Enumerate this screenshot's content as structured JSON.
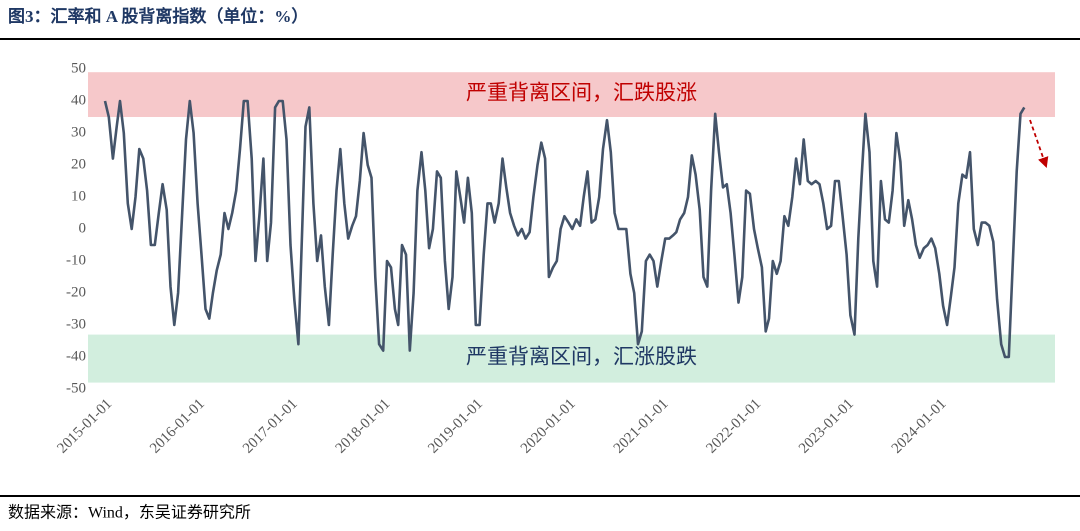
{
  "chart_data": {
    "type": "line",
    "title": "图3：汇率和 A 股背离指数（单位：%）",
    "source": "数据来源：Wind，东吴证券研究所",
    "x": [
      "2015-01-01",
      "2015-01-16",
      "2015-02-01",
      "2015-02-16",
      "2015-03-01",
      "2015-03-16",
      "2015-04-01",
      "2015-04-16",
      "2015-05-01",
      "2015-05-16",
      "2015-06-01",
      "2015-06-16",
      "2015-07-01",
      "2015-07-16",
      "2015-08-01",
      "2015-08-16",
      "2015-09-01",
      "2015-09-16",
      "2015-10-01",
      "2015-10-16",
      "2015-11-01",
      "2015-11-16",
      "2015-12-01",
      "2015-12-16",
      "2016-01-01",
      "2016-01-16",
      "2016-02-01",
      "2016-02-16",
      "2016-03-01",
      "2016-03-16",
      "2016-04-01",
      "2016-04-16",
      "2016-05-01",
      "2016-05-16",
      "2016-06-01",
      "2016-06-16",
      "2016-07-01",
      "2016-07-16",
      "2016-08-01",
      "2016-08-16",
      "2016-09-01",
      "2016-09-16",
      "2016-10-01",
      "2016-10-16",
      "2016-11-01",
      "2016-11-16",
      "2016-12-01",
      "2016-12-16",
      "2017-01-01",
      "2017-01-16",
      "2017-02-01",
      "2017-02-16",
      "2017-03-01",
      "2017-03-16",
      "2017-04-01",
      "2017-04-16",
      "2017-05-01",
      "2017-05-16",
      "2017-06-01",
      "2017-06-16",
      "2017-07-01",
      "2017-07-16",
      "2017-08-01",
      "2017-08-16",
      "2017-09-01",
      "2017-09-16",
      "2017-10-01",
      "2017-10-16",
      "2017-11-01",
      "2017-11-16",
      "2017-12-01",
      "2017-12-16",
      "2018-01-01",
      "2018-01-16",
      "2018-02-01",
      "2018-02-16",
      "2018-03-01",
      "2018-03-16",
      "2018-04-01",
      "2018-04-16",
      "2018-05-01",
      "2018-05-16",
      "2018-06-01",
      "2018-06-16",
      "2018-07-01",
      "2018-07-16",
      "2018-08-01",
      "2018-08-16",
      "2018-09-01",
      "2018-09-16",
      "2018-10-01",
      "2018-10-16",
      "2018-11-01",
      "2018-11-16",
      "2018-12-01",
      "2018-12-16",
      "2019-01-01",
      "2019-01-16",
      "2019-02-01",
      "2019-02-16",
      "2019-03-01",
      "2019-03-16",
      "2019-04-01",
      "2019-04-16",
      "2019-05-01",
      "2019-05-16",
      "2019-06-01",
      "2019-06-16",
      "2019-07-01",
      "2019-07-16",
      "2019-08-01",
      "2019-08-16",
      "2019-09-01",
      "2019-09-16",
      "2019-10-01",
      "2019-10-16",
      "2019-11-01",
      "2019-11-16",
      "2019-12-01",
      "2019-12-16",
      "2020-01-01",
      "2020-01-16",
      "2020-02-01",
      "2020-02-16",
      "2020-03-01",
      "2020-03-16",
      "2020-04-01",
      "2020-04-16",
      "2020-05-01",
      "2020-05-16",
      "2020-06-01",
      "2020-06-16",
      "2020-07-01",
      "2020-07-16",
      "2020-08-01",
      "2020-08-16",
      "2020-09-01",
      "2020-09-16",
      "2020-10-01",
      "2020-10-16",
      "2020-11-01",
      "2020-11-16",
      "2020-12-01",
      "2020-12-16",
      "2021-01-01",
      "2021-01-16",
      "2021-02-01",
      "2021-02-16",
      "2021-03-01",
      "2021-03-16",
      "2021-04-01",
      "2021-04-16",
      "2021-05-01",
      "2021-05-16",
      "2021-06-01",
      "2021-06-16",
      "2021-07-01",
      "2021-07-16",
      "2021-08-01",
      "2021-08-16",
      "2021-09-01",
      "2021-09-16",
      "2021-10-01",
      "2021-10-16",
      "2021-11-01",
      "2021-11-16",
      "2021-12-01",
      "2021-12-16",
      "2022-01-01",
      "2022-01-16",
      "2022-02-01",
      "2022-02-16",
      "2022-03-01",
      "2022-03-16",
      "2022-04-01",
      "2022-04-16",
      "2022-05-01",
      "2022-05-16",
      "2022-06-01",
      "2022-06-16",
      "2022-07-01",
      "2022-07-16",
      "2022-08-01",
      "2022-08-16",
      "2022-09-01",
      "2022-09-16",
      "2022-10-01",
      "2022-10-16",
      "2022-11-01",
      "2022-11-16",
      "2022-12-01",
      "2022-12-16",
      "2023-01-01",
      "2023-01-16",
      "2023-02-01",
      "2023-02-16",
      "2023-03-01",
      "2023-03-16",
      "2023-04-01",
      "2023-04-16",
      "2023-05-01",
      "2023-05-16",
      "2023-06-01",
      "2023-06-16",
      "2023-07-01",
      "2023-07-16",
      "2023-08-01",
      "2023-08-16",
      "2023-09-01",
      "2023-09-16",
      "2023-10-01",
      "2023-10-16",
      "2023-11-01",
      "2023-11-16",
      "2023-12-01",
      "2023-12-16",
      "2024-01-01",
      "2024-01-16",
      "2024-02-01",
      "2024-02-16",
      "2024-03-01",
      "2024-03-16",
      "2024-04-01",
      "2024-04-16",
      "2024-05-01",
      "2024-05-16",
      "2024-06-01",
      "2024-06-16",
      "2024-07-01",
      "2024-07-16",
      "2024-08-01",
      "2024-08-16",
      "2024-09-01",
      "2024-09-16",
      "2024-10-01",
      "2024-10-16",
      "2024-11-01",
      "2024-11-16",
      "2024-12-01"
    ],
    "series": [
      {
        "color": "#44546a",
        "values": [
          40,
          35,
          22,
          32,
          40,
          30,
          8,
          0,
          10,
          25,
          22,
          12,
          -5,
          -5,
          5,
          14,
          6,
          -18,
          -30,
          -20,
          5,
          28,
          40,
          30,
          8,
          -8,
          -25,
          -28,
          -20,
          -13,
          -8,
          5,
          0,
          5,
          12,
          25,
          40,
          40,
          22,
          -10,
          5,
          22,
          -10,
          2,
          38,
          40,
          40,
          28,
          -5,
          -22,
          -36,
          0,
          32,
          38,
          8,
          -10,
          -2,
          -18,
          -30,
          -8,
          12,
          25,
          8,
          -3,
          1,
          4,
          15,
          30,
          20,
          16,
          -15,
          -36,
          -38,
          -10,
          -12,
          -25,
          -30,
          -5,
          -8,
          -38,
          -20,
          12,
          24,
          12,
          -6,
          0,
          18,
          16,
          -10,
          -25,
          -15,
          18,
          10,
          2,
          16,
          5,
          -30,
          -30,
          -8,
          8,
          8,
          2,
          8,
          22,
          13,
          5,
          1,
          -2,
          0,
          -3,
          -1,
          10,
          20,
          27,
          22,
          -15,
          -12,
          -10,
          0,
          4,
          2,
          0,
          3,
          1,
          10,
          18,
          2,
          3,
          10,
          25,
          34,
          24,
          5,
          0,
          0,
          0,
          -14,
          -20,
          -36,
          -32,
          -10,
          -8,
          -10,
          -18,
          -10,
          -3,
          -3,
          -2,
          -1,
          3,
          5,
          10,
          23,
          17,
          6,
          -15,
          -18,
          12,
          36,
          24,
          13,
          14,
          5,
          -8,
          -23,
          -15,
          12,
          11,
          0,
          -6,
          -12,
          -32,
          -28,
          -10,
          -14,
          -10,
          4,
          1,
          10,
          22,
          14,
          28,
          15,
          14,
          15,
          14,
          8,
          0,
          1,
          15,
          15,
          4,
          -8,
          -27,
          -33,
          -3,
          16,
          36,
          24,
          -10,
          -18,
          15,
          3,
          2,
          12,
          30,
          21,
          1,
          9,
          3,
          -5,
          -9,
          -6,
          -5,
          -3,
          -6,
          -14,
          -24,
          -30,
          -21,
          -12,
          8,
          17,
          16,
          24,
          0,
          -5,
          2,
          2,
          1,
          -4,
          -22,
          -36,
          -40,
          -40,
          -12,
          18,
          36,
          38
        ]
      }
    ],
    "xlim": [
      "2014-10-26",
      "2025-04-01"
    ],
    "xticks": [
      "2015-01-01",
      "2016-01-01",
      "2017-01-01",
      "2018-01-01",
      "2019-01-01",
      "2020-01-01",
      "2021-01-01",
      "2022-01-01",
      "2023-01-01",
      "2024-01-01"
    ],
    "ylim": [
      -50,
      50
    ],
    "yticks": [
      -50,
      -40,
      -30,
      -20,
      -10,
      0,
      10,
      20,
      30,
      40,
      50
    ],
    "grid": false,
    "bands": [
      {
        "range": [
          35,
          49
        ],
        "color": "#f6c8ca",
        "label": "严重背离区间，汇跌股涨",
        "label_color": "#c00000"
      },
      {
        "range": [
          -48,
          -33
        ],
        "color": "#d2eede",
        "label": "严重背离区间，汇涨股跌",
        "label_color": "#1f3864"
      }
    ]
  }
}
